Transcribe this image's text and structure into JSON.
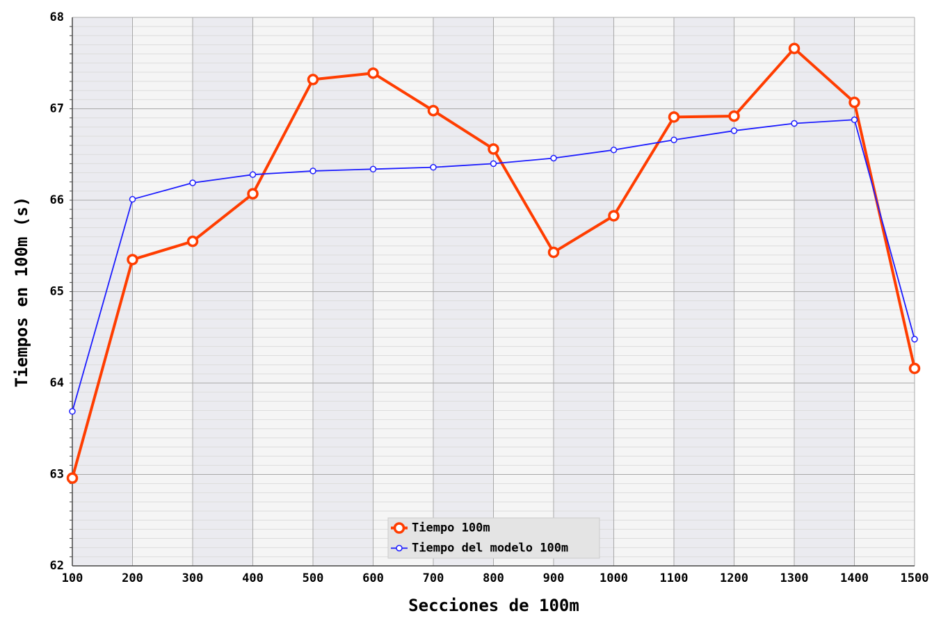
{
  "chart_data": {
    "type": "line",
    "x_label": "Secciones de 100m",
    "y_label": "Tiempos en 100m (s)",
    "x": [
      100,
      200,
      300,
      400,
      500,
      600,
      700,
      800,
      900,
      1000,
      1100,
      1200,
      1300,
      1400,
      1500
    ],
    "series": [
      {
        "name": "Tiempo 100m",
        "color": "#ff3d00",
        "values": [
          62.96,
          65.35,
          65.55,
          66.07,
          67.32,
          67.39,
          66.98,
          66.56,
          65.43,
          65.83,
          66.91,
          66.92,
          67.66,
          67.07,
          64.16
        ]
      },
      {
        "name": "Tiempo del modelo 100m",
        "color": "#1a1aff",
        "values": [
          63.69,
          66.01,
          66.19,
          66.28,
          66.32,
          66.34,
          66.36,
          66.4,
          66.46,
          66.55,
          66.66,
          66.76,
          66.84,
          66.88,
          64.48
        ]
      }
    ],
    "xlim": [
      100,
      1500
    ],
    "xticks": [
      100,
      200,
      300,
      400,
      500,
      600,
      700,
      800,
      900,
      1000,
      1100,
      1200,
      1300,
      1400,
      1500
    ],
    "ylim": [
      62,
      68
    ],
    "yticks": [
      62,
      63,
      64,
      65,
      66,
      67,
      68
    ],
    "grid": true,
    "legend": "bottom"
  }
}
